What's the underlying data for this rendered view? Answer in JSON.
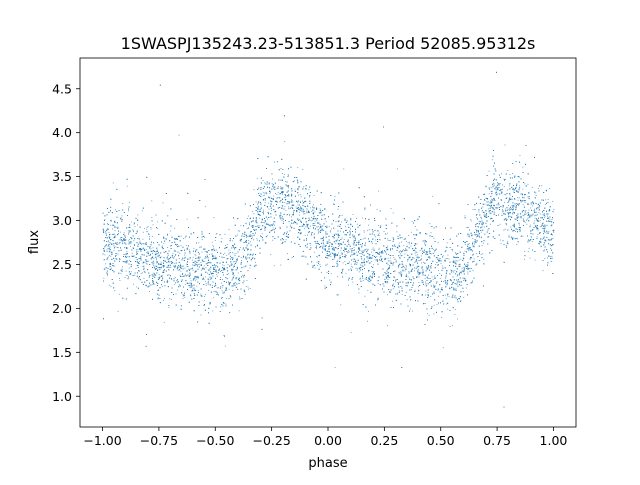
{
  "chart_data": {
    "type": "scatter",
    "title": "1SWASPJ135243.23-513851.3 Period 52085.95312s",
    "xlabel": "phase",
    "ylabel": "flux",
    "xlim": [
      -1.1,
      1.1
    ],
    "ylim": [
      0.65,
      4.85
    ],
    "xticks": [
      -1.0,
      -0.75,
      -0.5,
      -0.25,
      0.0,
      0.25,
      0.5,
      0.75,
      1.0
    ],
    "xtick_labels": [
      "−1.00",
      "−0.75",
      "−0.50",
      "−0.25",
      "0.00",
      "0.25",
      "0.50",
      "0.75",
      "1.00"
    ],
    "yticks": [
      1.0,
      1.5,
      2.0,
      2.5,
      3.0,
      3.5,
      4.0,
      4.5
    ],
    "ytick_labels": [
      "1.0",
      "1.5",
      "2.0",
      "2.5",
      "3.0",
      "3.5",
      "4.0",
      "4.5"
    ],
    "grid": false,
    "marker_color": "#1f77b4",
    "series": [
      {
        "phase_range": [
          -1.0,
          1.0
        ],
        "mean_curve": {
          "x": [
            -1.0,
            -0.9,
            -0.8,
            -0.7,
            -0.6,
            -0.5,
            -0.45,
            -0.4,
            -0.35,
            -0.3,
            -0.25,
            -0.2,
            -0.1,
            0.0,
            0.1,
            0.2,
            0.3,
            0.4,
            0.5,
            0.55,
            0.6,
            0.65,
            0.7,
            0.75,
            0.8,
            0.9,
            1.0
          ],
          "y": [
            2.75,
            2.68,
            2.58,
            2.52,
            2.48,
            2.44,
            2.38,
            2.48,
            2.78,
            3.1,
            3.22,
            3.18,
            3.0,
            2.76,
            2.66,
            2.58,
            2.52,
            2.48,
            2.42,
            2.38,
            2.46,
            2.78,
            3.1,
            3.22,
            3.2,
            3.02,
            2.85
          ]
        },
        "scatter_sigma": 0.22
      }
    ]
  }
}
